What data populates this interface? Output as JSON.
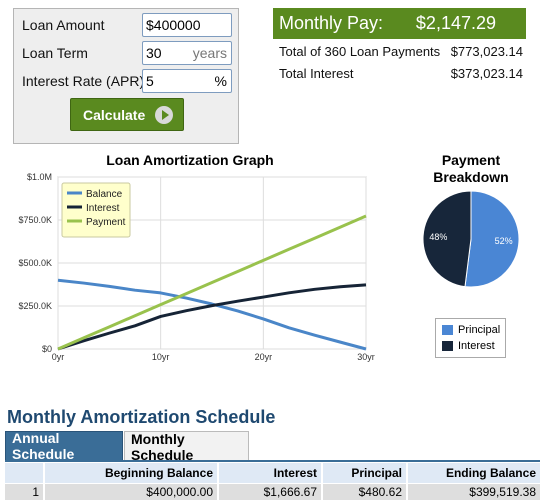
{
  "calculator": {
    "loan_amount_label": "Loan Amount",
    "loan_amount_value": "$400000",
    "loan_term_label": "Loan Term",
    "loan_term_value": "30",
    "loan_term_unit": "years",
    "interest_rate_label": "Interest Rate (APR)",
    "interest_rate_value": "5",
    "interest_rate_unit": "%",
    "calculate_label": "Calculate"
  },
  "results": {
    "monthly_pay_label": "Monthly Pay:",
    "monthly_pay_value": "$2,147.29",
    "total_payments_label": "Total of 360 Loan Payments",
    "total_payments_value": "$773,023.14",
    "total_interest_label": "Total Interest",
    "total_interest_value": "$373,023.14"
  },
  "chart_data": [
    {
      "type": "line",
      "title": "Loan Amortization Graph",
      "x": [
        0,
        2.5,
        5,
        7.5,
        10,
        12.5,
        15,
        17.5,
        20,
        22.5,
        25,
        27.5,
        30
      ],
      "x_ticks": [
        "0yr",
        "10yr",
        "20yr",
        "30yr"
      ],
      "y_ticks": [
        "$0",
        "$250.0K",
        "$500.0K",
        "$750.0K",
        "$1.0M"
      ],
      "ylim": [
        0,
        1000000
      ],
      "xlim": [
        0,
        30
      ],
      "grid": true,
      "legend_position": "top-left",
      "series": [
        {
          "name": "Balance",
          "color": "#4a86c8",
          "values": [
            400000,
            383400,
            364200,
            341900,
            326000,
            296200,
            261500,
            221000,
            175000,
            123000,
            80000,
            40000,
            0
          ]
        },
        {
          "name": "Interest",
          "color": "#162436",
          "values": [
            0,
            47500,
            92300,
            135000,
            189200,
            222600,
            252200,
            278000,
            302000,
            326700,
            347000,
            362000,
            373000
          ]
        },
        {
          "name": "Payment",
          "color": "#99c24d",
          "values": [
            0,
            64400,
            128800,
            193300,
            257700,
            322100,
            386500,
            450900,
            515300,
            579800,
            644200,
            708600,
            773000
          ]
        }
      ]
    },
    {
      "type": "pie",
      "title": "Payment Breakdown",
      "slices": [
        {
          "name": "Principal",
          "value": 52,
          "label": "52%",
          "color": "#4a86d4"
        },
        {
          "name": "Interest",
          "value": 48,
          "label": "48%",
          "color": "#17263a"
        }
      ],
      "legend_position": "bottom"
    }
  ],
  "schedule": {
    "title": "Monthly Amortization Schedule",
    "tab_annual": "Annual Schedule",
    "tab_monthly": "Monthly Schedule",
    "columns": [
      "",
      "Beginning Balance",
      "Interest",
      "Principal",
      "Ending Balance"
    ],
    "rows": [
      [
        "1",
        "$400,000.00",
        "$1,666.67",
        "$480.62",
        "$399,519.38"
      ]
    ]
  }
}
